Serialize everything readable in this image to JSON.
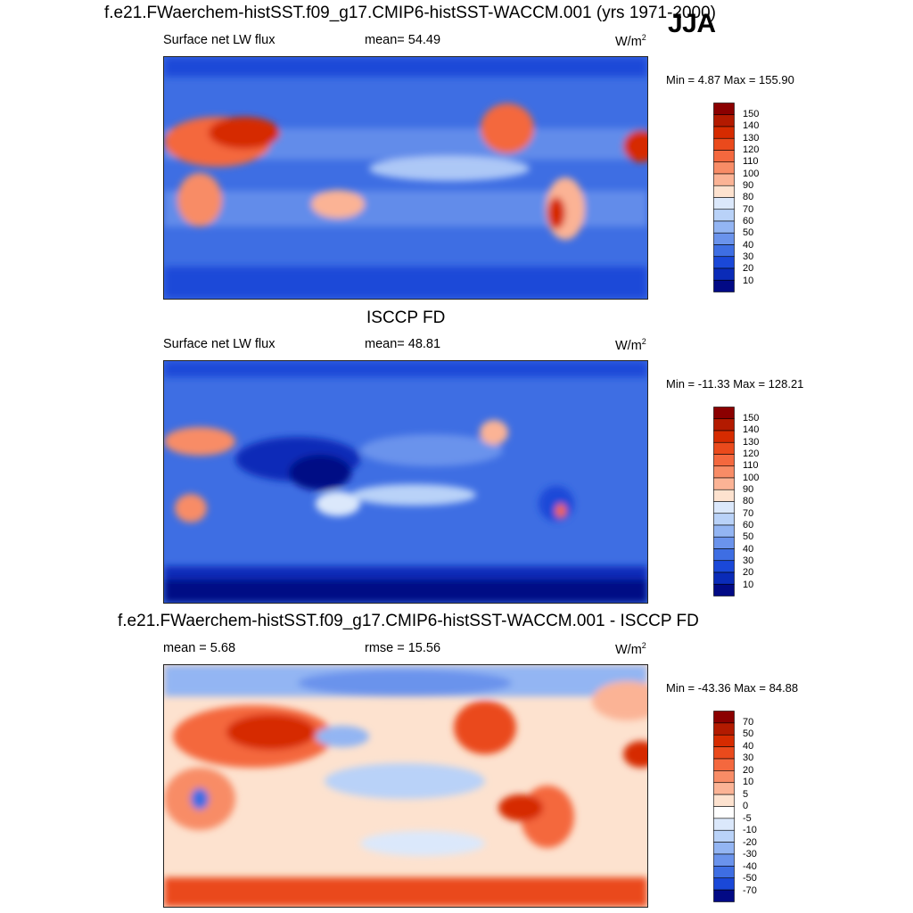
{
  "figure": {
    "title": "f.e21.FWaerchem-histSST.f09_g17.CMIP6-histSST-WACCM.001 (yrs 1971-2000)",
    "season": "JJA"
  },
  "panels": [
    {
      "variable": "Surface net LW flux",
      "stat_label": "mean=  54.49",
      "units": "W/m",
      "units_sup": "2",
      "minmax": "Min =   4.87 Max = 155.90",
      "colorbar_labels": [
        "150",
        "140",
        "130",
        "120",
        "110",
        "100",
        "90",
        "80",
        "70",
        "60",
        "50",
        "40",
        "30",
        "20",
        "10"
      ],
      "colorbar_colors": [
        "#8b0000",
        "#b31a00",
        "#d62b00",
        "#ea4a1c",
        "#f4683e",
        "#f88c66",
        "#fbb395",
        "#fde2cf",
        "#dbe8fb",
        "#b9d2f8",
        "#93b5f3",
        "#6a93ec",
        "#3e6ee3",
        "#1a48d8",
        "#0a2bb8",
        "#020a85"
      ],
      "map_style": "absolute"
    },
    {
      "title": "ISCCP FD",
      "variable": "Surface net LW flux",
      "stat_label": "mean=  48.81",
      "units": "W/m",
      "units_sup": "2",
      "minmax": "Min = -11.33 Max = 128.21",
      "colorbar_labels": [
        "150",
        "140",
        "130",
        "120",
        "110",
        "100",
        "90",
        "80",
        "70",
        "60",
        "50",
        "40",
        "30",
        "20",
        "10"
      ],
      "colorbar_colors": [
        "#8b0000",
        "#b31a00",
        "#d62b00",
        "#ea4a1c",
        "#f4683e",
        "#f88c66",
        "#fbb395",
        "#fde2cf",
        "#dbe8fb",
        "#b9d2f8",
        "#93b5f3",
        "#6a93ec",
        "#3e6ee3",
        "#1a48d8",
        "#0a2bb8",
        "#020a85"
      ],
      "map_style": "absolute"
    },
    {
      "title": "f.e21.FWaerchem-histSST.f09_g17.CMIP6-histSST-WACCM.001 - ISCCP FD",
      "stat_label": "mean =   5.68",
      "stat2_label": "rmse =  15.56",
      "units": "W/m",
      "units_sup": "2",
      "minmax": "Min = -43.36 Max =  84.88",
      "colorbar_labels": [
        "70",
        "50",
        "40",
        "30",
        "20",
        "10",
        "5",
        "0",
        "-5",
        "-10",
        "-20",
        "-30",
        "-40",
        "-50",
        "-70"
      ],
      "colorbar_colors": [
        "#8b0000",
        "#b31a00",
        "#d62b00",
        "#ea4a1c",
        "#f4683e",
        "#f88c66",
        "#fbb395",
        "#fde2cf",
        "#ffffff",
        "#dbe8fb",
        "#b9d2f8",
        "#93b5f3",
        "#6a93ec",
        "#3e6ee3",
        "#1a48d8",
        "#020a85"
      ],
      "map_style": "difference"
    }
  ]
}
